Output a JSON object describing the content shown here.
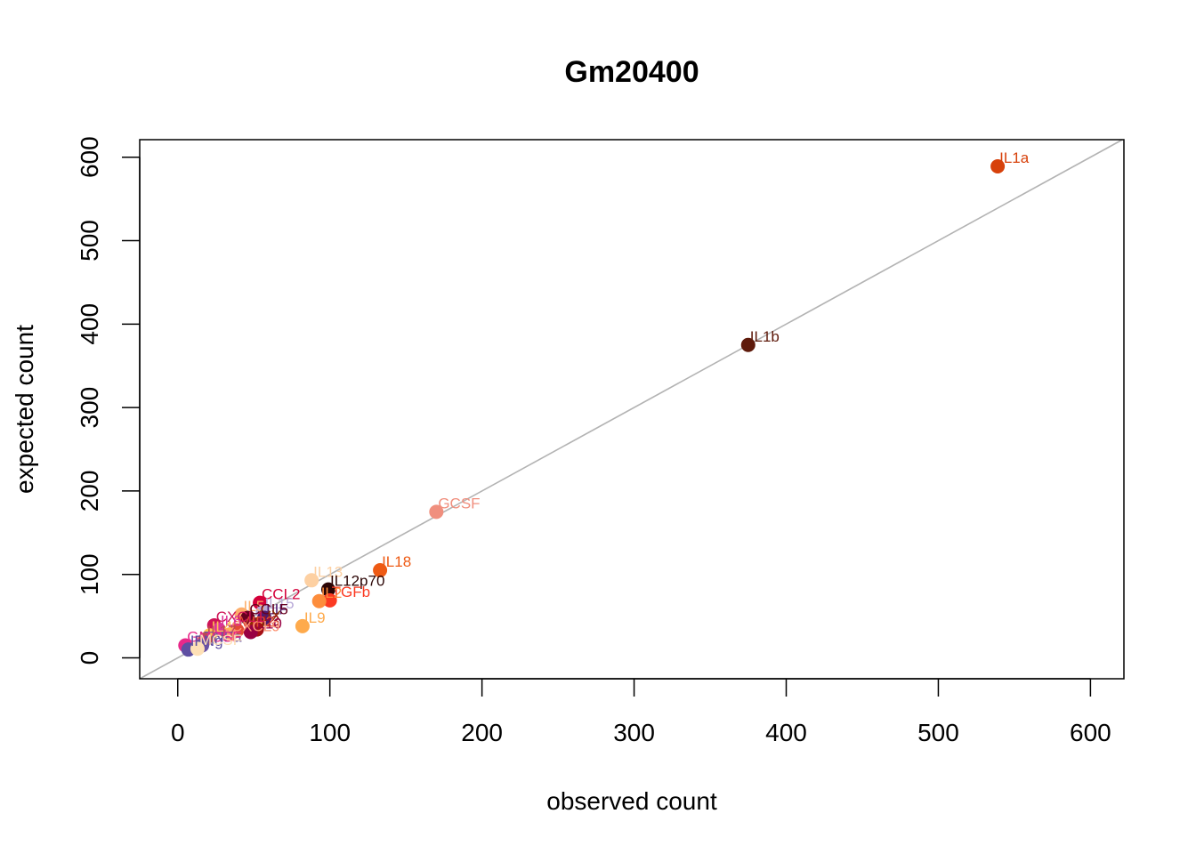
{
  "chart_data": {
    "type": "scatter",
    "title": "Gm20400",
    "xlabel": "observed count",
    "ylabel": "expected count",
    "xlim": [
      -25,
      622
    ],
    "ylim": [
      -25,
      621
    ],
    "xticks": [
      0,
      100,
      200,
      300,
      400,
      500,
      600
    ],
    "yticks": [
      0,
      100,
      200,
      300,
      400,
      500,
      600
    ],
    "reference_line": "y = x",
    "reference_line_color": "#b3b3b3",
    "grid": false,
    "legend": "none",
    "points": [
      {
        "label": "IL1a",
        "x": 539,
        "y": 589,
        "color": "#d7410b"
      },
      {
        "label": "IL1b",
        "x": 375,
        "y": 375,
        "color": "#5e1a0b"
      },
      {
        "label": "GCSF",
        "x": 170,
        "y": 175,
        "color": "#f08f7e"
      },
      {
        "label": "IL18",
        "x": 133,
        "y": 105,
        "color": "#ee5a14"
      },
      {
        "label": "IL13",
        "x": 88,
        "y": 93,
        "color": "#fdd0a2"
      },
      {
        "label": "IL12p70",
        "x": 99,
        "y": 82,
        "color": "#2b0505"
      },
      {
        "label": "TGFb",
        "x": 100,
        "y": 69,
        "color": "#fb3a22"
      },
      {
        "label": "IL2",
        "x": 93,
        "y": 68,
        "color": "#fd8d3c"
      },
      {
        "label": "IL9",
        "x": 82,
        "y": 38,
        "color": "#feaa4c"
      },
      {
        "label": "CCL2",
        "x": 54,
        "y": 66,
        "color": "#d4003a"
      },
      {
        "label": "IL15",
        "x": 56,
        "y": 55,
        "color": "#b8a9d8"
      },
      {
        "label": "LIF",
        "x": 57,
        "y": 48,
        "color": "#4d1a6e"
      },
      {
        "label": "IL5",
        "x": 42,
        "y": 52,
        "color": "#fdae6b"
      },
      {
        "label": "CCL5",
        "x": 46,
        "y": 48,
        "color": "#67001f"
      },
      {
        "label": "LIX",
        "x": 52,
        "y": 40,
        "color": "#8c2d04"
      },
      {
        "label": "IL3",
        "x": 52,
        "y": 34,
        "color": "#a50f15"
      },
      {
        "label": "IL10",
        "x": 48,
        "y": 31,
        "color": "#980043"
      },
      {
        "label": "MIP2",
        "x": 39,
        "y": 33,
        "color": "#e34a33"
      },
      {
        "label": "CXCL9",
        "x": 34,
        "y": 28,
        "color": "#fc9272"
      },
      {
        "label": "CXCL1",
        "x": 24,
        "y": 39,
        "color": "#ce1256"
      },
      {
        "label": "IL6",
        "x": 27,
        "y": 34,
        "color": "#dd3497"
      },
      {
        "label": "IL4",
        "x": 21,
        "y": 27,
        "color": "#fec44f"
      },
      {
        "label": "IL17",
        "x": 18,
        "y": 22,
        "color": "#bc4b51"
      },
      {
        "label": "TNFa",
        "x": 16,
        "y": 15,
        "color": "#6a51a3"
      },
      {
        "label": "GMCSF",
        "x": 5,
        "y": 15,
        "color": "#e7298a"
      },
      {
        "label": "IFNg",
        "x": 7,
        "y": 10,
        "color": "#5e4fa2"
      },
      {
        "label": "MCSF",
        "x": 13,
        "y": 11,
        "color": "#fee0b6"
      }
    ],
    "labels_shown": [
      "IL1a",
      "IL1b",
      "GCSF",
      "IL18",
      "IL13",
      "IL12p70",
      "TGFb",
      "IL2",
      "IL9",
      "CCL2",
      "IL15",
      "LIF",
      "IL5",
      "CCL5",
      "LIX",
      "IL3",
      "IL10",
      "MIP2",
      "CXCL9",
      "CXCL1",
      "IL6",
      "IL4",
      "IL17",
      "TNFa",
      "GMCSF",
      "IFNg",
      "MCSF"
    ]
  }
}
